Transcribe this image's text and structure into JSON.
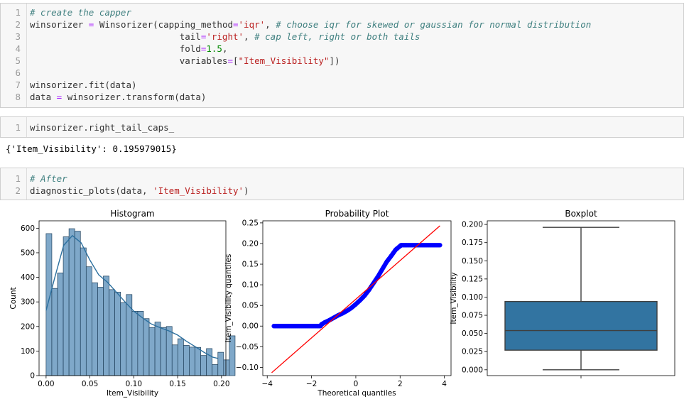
{
  "cell1": {
    "lines": [
      {
        "n": "1",
        "parts": [
          {
            "t": "# create the capper",
            "c": "cm"
          }
        ]
      },
      {
        "n": "2",
        "parts": [
          {
            "t": "winsorizer "
          },
          {
            "t": "=",
            "c": "op"
          },
          {
            "t": " Winsorizer(capping_method"
          },
          {
            "t": "=",
            "c": "op"
          },
          {
            "t": "'iqr'",
            "c": "str"
          },
          {
            "t": ", "
          },
          {
            "t": "# choose iqr for skewed or gaussian for normal distribution",
            "c": "cm"
          }
        ]
      },
      {
        "n": "3",
        "parts": [
          {
            "t": "                            tail"
          },
          {
            "t": "=",
            "c": "op"
          },
          {
            "t": "'right'",
            "c": "str"
          },
          {
            "t": ", "
          },
          {
            "t": "# cap left, right or both tails",
            "c": "cm"
          }
        ]
      },
      {
        "n": "4",
        "parts": [
          {
            "t": "                            fold"
          },
          {
            "t": "=",
            "c": "op"
          },
          {
            "t": "1.5",
            "c": "num"
          },
          {
            "t": ","
          }
        ]
      },
      {
        "n": "5",
        "parts": [
          {
            "t": "                            variables"
          },
          {
            "t": "=",
            "c": "op"
          },
          {
            "t": "["
          },
          {
            "t": "\"Item_Visibility\"",
            "c": "str"
          },
          {
            "t": "])"
          }
        ]
      },
      {
        "n": "6",
        "parts": []
      },
      {
        "n": "7",
        "parts": [
          {
            "t": "winsorizer.fit(data)"
          }
        ]
      },
      {
        "n": "8",
        "parts": [
          {
            "t": "data "
          },
          {
            "t": "=",
            "c": "op"
          },
          {
            "t": " winsorizer.transform(data)"
          }
        ]
      }
    ]
  },
  "cell2": {
    "lines": [
      {
        "n": "1",
        "parts": [
          {
            "t": "winsorizer.right_tail_caps_"
          }
        ]
      }
    ]
  },
  "cell2_output": "{'Item_Visibility': 0.195979015}",
  "cell3": {
    "lines": [
      {
        "n": "1",
        "parts": [
          {
            "t": "# After",
            "c": "cm"
          }
        ]
      },
      {
        "n": "2",
        "parts": [
          {
            "t": "diagnostic_plots(data, "
          },
          {
            "t": "'Item_Visibility'",
            "c": "str"
          },
          {
            "t": ")"
          }
        ]
      }
    ]
  },
  "chart_data": [
    {
      "type": "bar",
      "title": "Histogram",
      "xlabel": "Item_Visibility",
      "ylabel": "Count",
      "xlim": [
        -0.008,
        0.205
      ],
      "ylim": [
        0,
        630
      ],
      "xticks": [
        "0.00",
        "0.05",
        "0.10",
        "0.15",
        "0.20"
      ],
      "xtick_values": [
        0,
        0.05,
        0.1,
        0.15,
        0.2
      ],
      "yticks": [
        "0",
        "100",
        "200",
        "300",
        "400",
        "500",
        "600"
      ],
      "ytick_values": [
        0,
        100,
        200,
        300,
        400,
        500,
        600
      ],
      "bin_width": 0.00653,
      "bin_start": 0,
      "values": [
        578,
        355,
        418,
        565,
        598,
        588,
        520,
        443,
        378,
        360,
        405,
        350,
        340,
        297,
        330,
        262,
        262,
        232,
        196,
        218,
        196,
        200,
        125,
        150,
        123,
        116,
        115,
        82,
        110,
        45,
        95,
        64,
        162
      ],
      "kde": [
        [
          0,
          265
        ],
        [
          0.01,
          400
        ],
        [
          0.02,
          530
        ],
        [
          0.03,
          570
        ],
        [
          0.04,
          540
        ],
        [
          0.05,
          470
        ],
        [
          0.06,
          410
        ],
        [
          0.07,
          380
        ],
        [
          0.08,
          340
        ],
        [
          0.09,
          300
        ],
        [
          0.1,
          262
        ],
        [
          0.11,
          235
        ],
        [
          0.12,
          210
        ],
        [
          0.13,
          195
        ],
        [
          0.14,
          182
        ],
        [
          0.15,
          165
        ],
        [
          0.16,
          140
        ],
        [
          0.17,
          118
        ],
        [
          0.18,
          95
        ],
        [
          0.19,
          75
        ],
        [
          0.196,
          70
        ]
      ],
      "bar_color": "#7fa8c9",
      "kde_color": "#2b6f9e"
    },
    {
      "type": "scatter",
      "title": "Probability Plot",
      "xlabel": "Theoretical quantiles",
      "ylabel": "Item_Visibility quantiles",
      "xlim": [
        -4.2,
        4.3
      ],
      "ylim": [
        -0.12,
        0.255
      ],
      "xticks": [
        "−4",
        "−2",
        "0",
        "2",
        "4"
      ],
      "xtick_values": [
        -4,
        -2,
        0,
        2,
        4
      ],
      "yticks": [
        "−0.10",
        "−0.05",
        "0.00",
        "0.05",
        "0.10",
        "0.15",
        "0.20",
        "0.25"
      ],
      "ytick_values": [
        -0.1,
        -0.05,
        0,
        0.05,
        0.1,
        0.15,
        0.2,
        0.25
      ],
      "points": [
        [
          -3.7,
          0
        ],
        [
          -3.4,
          0
        ],
        [
          -3.1,
          0
        ],
        [
          -2.8,
          0
        ],
        [
          -2.5,
          0
        ],
        [
          -2.2,
          0
        ],
        [
          -1.9,
          0
        ],
        [
          -1.6,
          0
        ],
        [
          -1.55,
          0.004
        ],
        [
          -1.4,
          0.009
        ],
        [
          -1.2,
          0.014
        ],
        [
          -1.0,
          0.02
        ],
        [
          -0.8,
          0.026
        ],
        [
          -0.6,
          0.031
        ],
        [
          -0.4,
          0.037
        ],
        [
          -0.2,
          0.044
        ],
        [
          0,
          0.053
        ],
        [
          0.2,
          0.063
        ],
        [
          0.4,
          0.074
        ],
        [
          0.6,
          0.088
        ],
        [
          0.8,
          0.104
        ],
        [
          1.0,
          0.12
        ],
        [
          1.2,
          0.138
        ],
        [
          1.4,
          0.156
        ],
        [
          1.6,
          0.17
        ],
        [
          1.8,
          0.185
        ],
        [
          2.0,
          0.194
        ],
        [
          2.05,
          0.196
        ],
        [
          2.3,
          0.196
        ],
        [
          2.6,
          0.196
        ],
        [
          2.9,
          0.196
        ],
        [
          3.2,
          0.196
        ],
        [
          3.5,
          0.196
        ],
        [
          3.8,
          0.196
        ]
      ],
      "fit_line": [
        [
          -3.8,
          -0.113
        ],
        [
          3.8,
          0.243
        ]
      ],
      "point_color": "#0000ff",
      "line_color": "#ff0000"
    },
    {
      "type": "box",
      "title": "Boxplot",
      "ylabel": "Item_Visibility",
      "ylim": [
        -0.008,
        0.205
      ],
      "yticks": [
        "0.000",
        "0.025",
        "0.050",
        "0.075",
        "0.100",
        "0.125",
        "0.150",
        "0.175",
        "0.200"
      ],
      "ytick_values": [
        0,
        0.025,
        0.05,
        0.075,
        0.1,
        0.125,
        0.15,
        0.175,
        0.2
      ],
      "min": 0.0,
      "q1": 0.027,
      "median": 0.054,
      "q3": 0.094,
      "max": 0.196,
      "box_color": "#3274a1"
    }
  ]
}
